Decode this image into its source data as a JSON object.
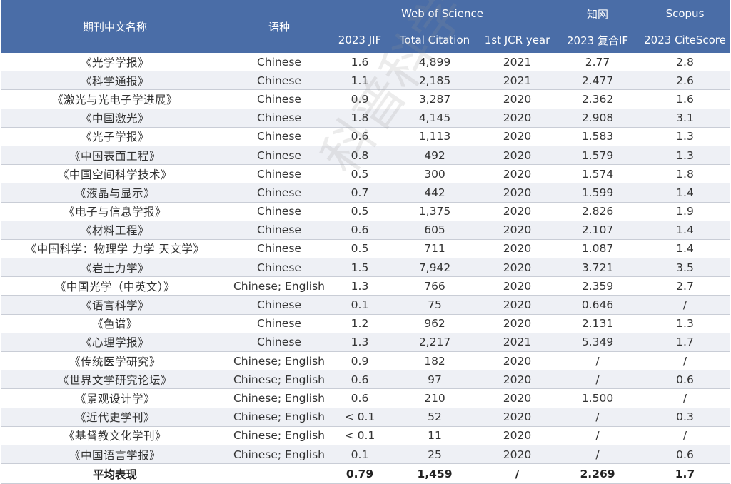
{
  "header": {
    "col_name": "期刊中文名称",
    "col_lang": "语种",
    "group_wos": "Web of Science",
    "group_cnki": "知网",
    "group_scopus": "Scopus",
    "sub_jif": "2023 JIF",
    "sub_citation": "Total Citation",
    "sub_jcr": "1st JCR year",
    "sub_cnki_if": "2023 复合IF",
    "sub_citescore": "2023 CiteScore"
  },
  "rows": [
    {
      "name": "《光学学报》",
      "lang": "Chinese",
      "jif": "1.6",
      "citation": "4,899",
      "jcr": "2021",
      "cnki": "2.77",
      "scopus": "2.8"
    },
    {
      "name": "《科学通报》",
      "lang": "Chinese",
      "jif": "1.1",
      "citation": "2,185",
      "jcr": "2021",
      "cnki": "2.477",
      "scopus": "2.6"
    },
    {
      "name": "《激光与光电子学进展》",
      "lang": "Chinese",
      "jif": "0.9",
      "citation": "3,287",
      "jcr": "2020",
      "cnki": "2.362",
      "scopus": "1.6"
    },
    {
      "name": "《中国激光》",
      "lang": "Chinese",
      "jif": "1.8",
      "citation": "4,145",
      "jcr": "2020",
      "cnki": "2.908",
      "scopus": "3.1"
    },
    {
      "name": "《光子学报》",
      "lang": "Chinese",
      "jif": "0.6",
      "citation": "1,113",
      "jcr": "2020",
      "cnki": "1.583",
      "scopus": "1.3"
    },
    {
      "name": "《中国表面工程》",
      "lang": "Chinese",
      "jif": "0.8",
      "citation": "492",
      "jcr": "2020",
      "cnki": "1.579",
      "scopus": "1.3"
    },
    {
      "name": "《中国空间科学技术》",
      "lang": "Chinese",
      "jif": "0.5",
      "citation": "300",
      "jcr": "2020",
      "cnki": "1.574",
      "scopus": "1.8"
    },
    {
      "name": "《液晶与显示》",
      "lang": "Chinese",
      "jif": "0.7",
      "citation": "442",
      "jcr": "2020",
      "cnki": "1.599",
      "scopus": "1.4"
    },
    {
      "name": "《电子与信息学报》",
      "lang": "Chinese",
      "jif": "0.5",
      "citation": "1,375",
      "jcr": "2020",
      "cnki": "2.826",
      "scopus": "1.9"
    },
    {
      "name": "《材料工程》",
      "lang": "Chinese",
      "jif": "0.6",
      "citation": "605",
      "jcr": "2020",
      "cnki": "2.107",
      "scopus": "1.4"
    },
    {
      "name": "《中国科学：物理学 力学 天文学》",
      "lang": "Chinese",
      "jif": "0.5",
      "citation": "711",
      "jcr": "2020",
      "cnki": "1.087",
      "scopus": "1.4"
    },
    {
      "name": "《岩土力学》",
      "lang": "Chinese",
      "jif": "1.5",
      "citation": "7,942",
      "jcr": "2020",
      "cnki": "3.721",
      "scopus": "3.5"
    },
    {
      "name": "《中国光学（中英文）》",
      "lang": "Chinese; English",
      "jif": "1.3",
      "citation": "766",
      "jcr": "2020",
      "cnki": "2.359",
      "scopus": "2.7"
    },
    {
      "name": "《语言科学》",
      "lang": "Chinese",
      "jif": "0.1",
      "citation": "75",
      "jcr": "2020",
      "cnki": "0.646",
      "scopus": "/"
    },
    {
      "name": "《色谱》",
      "lang": "Chinese",
      "jif": "1.2",
      "citation": "962",
      "jcr": "2020",
      "cnki": "2.131",
      "scopus": "1.3"
    },
    {
      "name": "《心理学报》",
      "lang": "Chinese",
      "jif": "1.3",
      "citation": "2,217",
      "jcr": "2021",
      "cnki": "5.349",
      "scopus": "1.7"
    },
    {
      "name": "《传统医学研究》",
      "lang": "Chinese; English",
      "jif": "0.9",
      "citation": "182",
      "jcr": "2020",
      "cnki": "/",
      "scopus": "/"
    },
    {
      "name": "《世界文学研究论坛》",
      "lang": "Chinese; English",
      "jif": "0.6",
      "citation": "97",
      "jcr": "2020",
      "cnki": "/",
      "scopus": "0.6"
    },
    {
      "name": "《景观设计学》",
      "lang": "Chinese; English",
      "jif": "0.6",
      "citation": "210",
      "jcr": "2020",
      "cnki": "1.500",
      "scopus": "/"
    },
    {
      "name": "《近代史学刊》",
      "lang": "Chinese; English",
      "jif": "< 0.1",
      "citation": "52",
      "jcr": "2020",
      "cnki": "/",
      "scopus": "0.3"
    },
    {
      "name": "《基督教文化学刊》",
      "lang": "Chinese; English",
      "jif": "< 0.1",
      "citation": "11",
      "jcr": "2020",
      "cnki": "/",
      "scopus": "/"
    },
    {
      "name": "《中国语言学报》",
      "lang": "Chinese; English",
      "jif": "0.1",
      "citation": "25",
      "jcr": "2020",
      "cnki": "/",
      "scopus": "0.6"
    }
  ],
  "footer": {
    "label": "平均表现",
    "lang": "",
    "jif": "0.79",
    "citation": "1,459",
    "jcr": "/",
    "cnki": "2.269",
    "scopus": "1.7"
  },
  "watermark": "科普科学",
  "colors": {
    "header_bg": "#4a6da7",
    "stripe": "#eef0f5"
  }
}
